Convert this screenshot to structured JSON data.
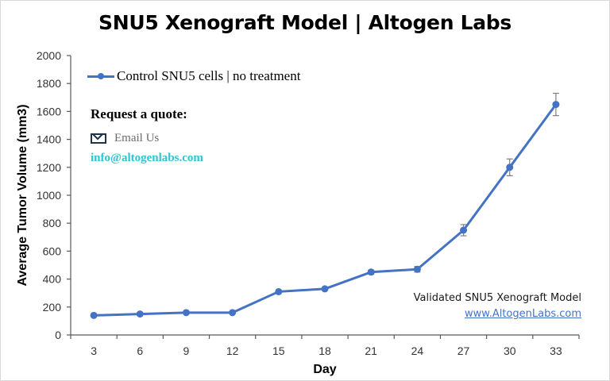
{
  "header": {
    "title": "SNU5 Xenograft Model | Altogen Labs"
  },
  "legend": {
    "label": "Control SNU5 cells | no treatment",
    "color": "#4472c4"
  },
  "contact": {
    "heading": "Request a quote:",
    "email_icon": "envelope-icon",
    "email_label": "Email Us",
    "email_address": "info@altogenlabs.com",
    "email_color": "#2ec4d4"
  },
  "footer": {
    "validated_text": "Validated SNU5 Xenograft Model",
    "website": "www.AltogenLabs.com"
  },
  "chart_data": {
    "type": "line",
    "title": "SNU5 Xenograft Model | Altogen Labs",
    "xlabel": "Day",
    "ylabel": "Average Tumor Volume (mm3)",
    "ylim": [
      0,
      2000
    ],
    "yticks": [
      0,
      200,
      400,
      600,
      800,
      1000,
      1200,
      1400,
      1600,
      1800,
      2000
    ],
    "categories": [
      "3",
      "6",
      "9",
      "12",
      "15",
      "18",
      "21",
      "24",
      "27",
      "30",
      "33"
    ],
    "series": [
      {
        "name": "Control SNU5 cells | no treatment",
        "color": "#4472c4",
        "values": [
          140,
          150,
          160,
          160,
          310,
          330,
          450,
          470,
          750,
          1200,
          1650
        ],
        "error": [
          5,
          5,
          5,
          5,
          8,
          8,
          15,
          20,
          40,
          60,
          80
        ]
      }
    ],
    "grid": false,
    "legend_position": "top-left inside"
  }
}
